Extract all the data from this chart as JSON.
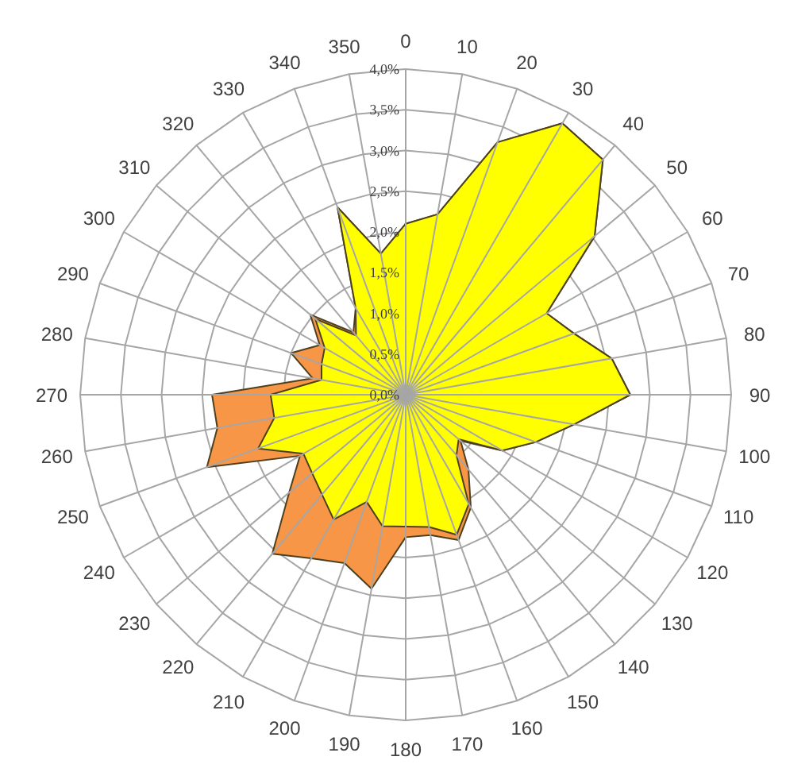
{
  "chart_data": {
    "type": "radar",
    "categories": [
      "0",
      "10",
      "20",
      "30",
      "40",
      "50",
      "60",
      "70",
      "80",
      "90",
      "100",
      "110",
      "120",
      "130",
      "140",
      "150",
      "160",
      "170",
      "180",
      "190",
      "200",
      "210",
      "220",
      "230",
      "240",
      "250",
      "260",
      "270",
      "280",
      "290",
      "300",
      "310",
      "320",
      "330",
      "340",
      "350"
    ],
    "series": [
      {
        "color": "#f79646",
        "values": [
          2.1,
          2.25,
          3.3,
          3.85,
          3.77,
          3.03,
          2.0,
          2.2,
          2.57,
          2.76,
          2.1,
          1.7,
          1.37,
          0.88,
          1.2,
          1.6,
          1.9,
          1.75,
          1.75,
          2.42,
          2.2,
          2.32,
          2.55,
          1.87,
          1.5,
          2.6,
          2.35,
          2.38,
          1.16,
          1.5,
          1.22,
          1.53,
          1.0,
          1.23,
          2.45,
          1.76
        ]
      },
      {
        "color": "#ffff00",
        "values": [
          2.1,
          2.25,
          3.3,
          3.85,
          3.77,
          3.03,
          2.0,
          2.2,
          2.57,
          2.76,
          2.1,
          1.7,
          1.37,
          0.85,
          0.97,
          1.55,
          1.83,
          1.65,
          1.62,
          1.64,
          1.4,
          1.77,
          1.6,
          1.5,
          1.45,
          1.93,
          1.64,
          1.66,
          1.05,
          1.1,
          1.15,
          1.45,
          0.95,
          1.23,
          2.45,
          1.76
        ]
      }
    ],
    "ylim": [
      0,
      4
    ],
    "yticks": [
      {
        "value": 0,
        "label": "0,0%"
      },
      {
        "value": 0.5,
        "label": "0,5%"
      },
      {
        "value": 1,
        "label": "1,0%"
      },
      {
        "value": 1.5,
        "label": "1,5%"
      },
      {
        "value": 2,
        "label": "2,0%"
      },
      {
        "value": 2.5,
        "label": "2,5%"
      },
      {
        "value": 3,
        "label": "3,0%"
      },
      {
        "value": 3.5,
        "label": "3,5%"
      },
      {
        "value": 4,
        "label": "4,0%"
      }
    ],
    "grid": true
  }
}
